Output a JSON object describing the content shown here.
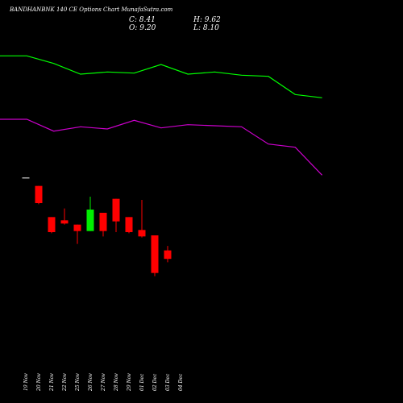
{
  "colors": {
    "background": "#000000",
    "upper_line": "#00ff00",
    "lower_line": "#cc00cc",
    "up_candle": "#00ee00",
    "down_candle": "#ff0000",
    "text": "#ffffff"
  },
  "header": {
    "title": "BANDHANBNK 140  CE Options  Chart MunafaSutra.com",
    "close": "C: 8.41",
    "high": "H: 9.62",
    "open": "O: 9.20",
    "low": "L: 8.10"
  },
  "chart_data": {
    "type": "candlestick",
    "title": "BANDHANBNK 140  CE Options  Chart MunafaSutra.com",
    "categories": [
      "19 Nov",
      "20 Nov",
      "21 Nov",
      "22 Nov",
      "25 Nov",
      "26 Nov",
      "27 Nov",
      "28 Nov",
      "29 Nov",
      "01 Dec",
      "02 Dec",
      "03 Dec",
      "04 Dec"
    ],
    "candles": [
      {
        "date": "19 Nov",
        "open": 16.0,
        "high": 16.0,
        "low": 16.0,
        "close": 16.0
      },
      {
        "date": "20 Nov",
        "open": 15.2,
        "high": 15.2,
        "low": 13.5,
        "close": 13.6
      },
      {
        "date": "21 Nov",
        "open": 12.3,
        "high": 12.3,
        "low": 10.8,
        "close": 10.9
      },
      {
        "date": "22 Nov",
        "open": 12.0,
        "high": 13.1,
        "low": 11.6,
        "close": 11.7
      },
      {
        "date": "25 Nov",
        "open": 11.6,
        "high": 11.6,
        "low": 9.8,
        "close": 11.0
      },
      {
        "date": "26 Nov",
        "open": 11.0,
        "high": 14.2,
        "low": 11.0,
        "close": 13.0
      },
      {
        "date": "27 Nov",
        "open": 12.7,
        "high": 12.7,
        "low": 10.5,
        "close": 11.0
      },
      {
        "date": "28 Nov",
        "open": 14.0,
        "high": 14.0,
        "low": 10.9,
        "close": 11.9
      },
      {
        "date": "29 Nov",
        "open": 12.3,
        "high": 12.3,
        "low": 10.8,
        "close": 10.9
      },
      {
        "date": "01 Dec",
        "open": 11.1,
        "high": 13.9,
        "low": 10.4,
        "close": 10.5
      },
      {
        "date": "02 Dec",
        "open": 10.6,
        "high": 10.6,
        "low": 6.8,
        "close": 7.1
      },
      {
        "date": "03 Dec",
        "open": 9.2,
        "high": 9.62,
        "low": 8.1,
        "close": 8.41
      }
    ],
    "upper_band": [
      27.3,
      27.3,
      26.6,
      25.6,
      25.8,
      25.7,
      26.5,
      25.6,
      25.8,
      25.5,
      25.4,
      23.7,
      23.4
    ],
    "lower_band": [
      21.4,
      21.4,
      20.3,
      20.7,
      20.5,
      21.3,
      20.6,
      20.9,
      20.8,
      20.7,
      19.1,
      18.8,
      16.2
    ],
    "ylim": [
      -5,
      32.5
    ],
    "grid": false
  }
}
